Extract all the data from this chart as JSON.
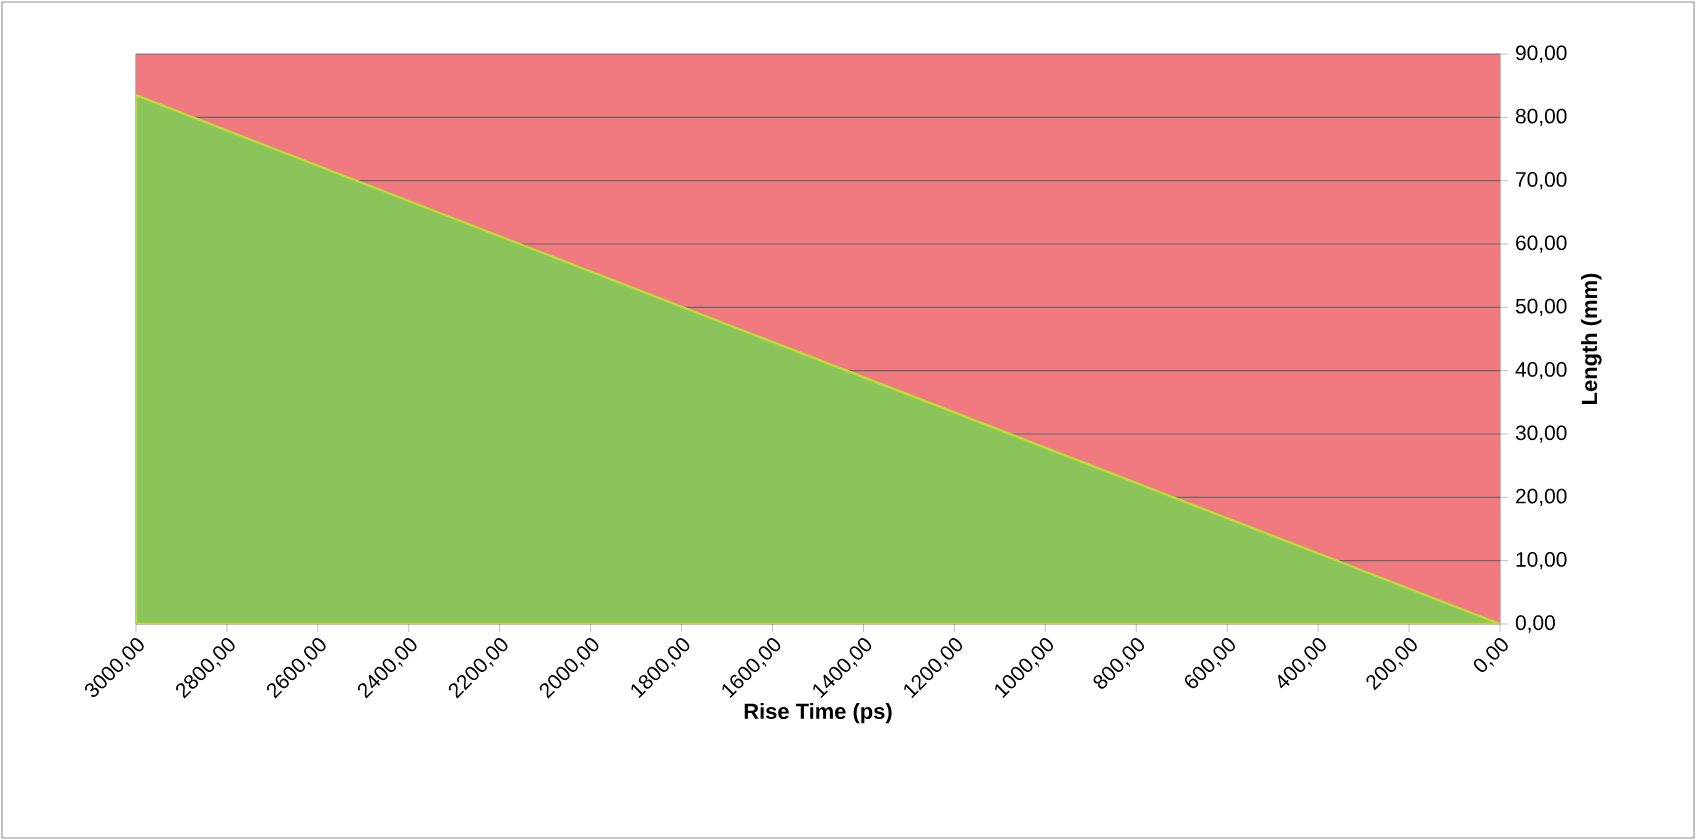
{
  "chart_data": {
    "type": "area",
    "xlabel": "Rise Time (ps)",
    "ylabel": "Length (mm)",
    "x": [
      3000,
      0
    ],
    "series": [
      {
        "color": "#8cc45c",
        "values": [
          83.5,
          0
        ]
      }
    ],
    "xlim": [
      3000,
      0
    ],
    "ylim": [
      0,
      90
    ],
    "xticks": [
      {
        "value": 3000,
        "label": "3000,00"
      },
      {
        "value": 2800,
        "label": "2800,00"
      },
      {
        "value": 2600,
        "label": "2600,00"
      },
      {
        "value": 2400,
        "label": "2400,00"
      },
      {
        "value": 2200,
        "label": "2200,00"
      },
      {
        "value": 2000,
        "label": "2000,00"
      },
      {
        "value": 1800,
        "label": "1800,00"
      },
      {
        "value": 1600,
        "label": "1600,00"
      },
      {
        "value": 1400,
        "label": "1400,00"
      },
      {
        "value": 1200,
        "label": "1200,00"
      },
      {
        "value": 1000,
        "label": "1000,00"
      },
      {
        "value": 800,
        "label": "800,00"
      },
      {
        "value": 600,
        "label": "600,00"
      },
      {
        "value": 400,
        "label": "400,00"
      },
      {
        "value": 200,
        "label": "200,00"
      },
      {
        "value": 0,
        "label": "0,00"
      }
    ],
    "yticks": [
      {
        "value": 0,
        "label": "0,00"
      },
      {
        "value": 10,
        "label": "10,00"
      },
      {
        "value": 20,
        "label": "20,00"
      },
      {
        "value": 30,
        "label": "30,00"
      },
      {
        "value": 40,
        "label": "40,00"
      },
      {
        "value": 50,
        "label": "50,00"
      },
      {
        "value": 60,
        "label": "60,00"
      },
      {
        "value": 70,
        "label": "70,00"
      },
      {
        "value": 80,
        "label": "80,00"
      },
      {
        "value": 90,
        "label": "90,00"
      }
    ],
    "bands": [
      {
        "axis": "y",
        "from": 0,
        "to": 90,
        "color": "#f07a80"
      }
    ],
    "grid": "y"
  }
}
